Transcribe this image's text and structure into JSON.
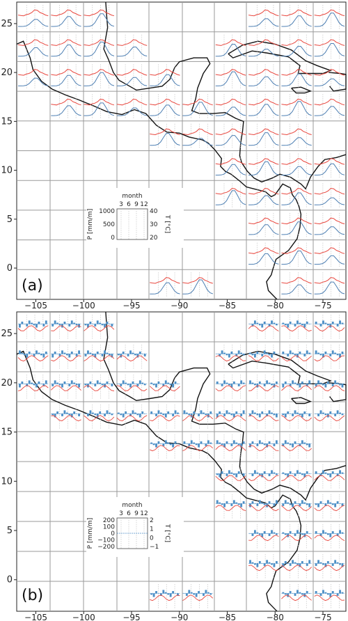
{
  "chart_data": [
    {
      "type": "line",
      "panel": "(a)",
      "xticks": [
        -105,
        -100,
        -95,
        -90,
        -85,
        -80,
        -75
      ],
      "yticks": [
        25,
        20,
        15,
        10,
        5,
        0
      ],
      "xlim": [
        -107,
        -72.6
      ],
      "ylim": [
        -3.2,
        27.2
      ],
      "grid": true,
      "series": [
        {
          "name": "",
          "color": "#4d7fb3",
          "role": "precipitation",
          "values": []
        },
        {
          "name": "",
          "color": "#e8453c",
          "role": "temperature",
          "values": []
        }
      ],
      "inset": {
        "top_label": "month",
        "xticks": [
          "3",
          "6",
          "9",
          "12"
        ],
        "left_label": "P [mm/m]",
        "left_ticks": [
          "1000",
          "500",
          "0"
        ],
        "right_label": "T [°C]",
        "right_ticks": [
          "40",
          "30",
          "20"
        ]
      }
    },
    {
      "type": "bar",
      "panel": "(b)",
      "xticks": [
        -105,
        -100,
        -95,
        -90,
        -85,
        -80,
        -75
      ],
      "yticks": [
        25,
        20,
        15,
        10,
        5,
        0
      ],
      "xlim": [
        -107,
        -72.6
      ],
      "ylim": [
        -3.2,
        27.2
      ],
      "grid": true,
      "series": [
        {
          "name": "",
          "color": "#4d8fc6",
          "role": "precipitation change",
          "values": []
        },
        {
          "name": "",
          "color": "#e8453c",
          "role": "temperature change",
          "values": []
        }
      ],
      "inset": {
        "top_label": "month",
        "xticks": [
          "3",
          "6",
          "9",
          "12"
        ],
        "left_label": "P [mm/m]",
        "left_ticks": [
          "200",
          "100",
          "0",
          "−100",
          "−200"
        ],
        "right_label": "T [°C]",
        "right_ticks": [
          "2",
          "1",
          "0",
          "−1"
        ]
      }
    }
  ],
  "panels": [
    {
      "label": "(a)"
    },
    {
      "label": "(b)"
    }
  ]
}
